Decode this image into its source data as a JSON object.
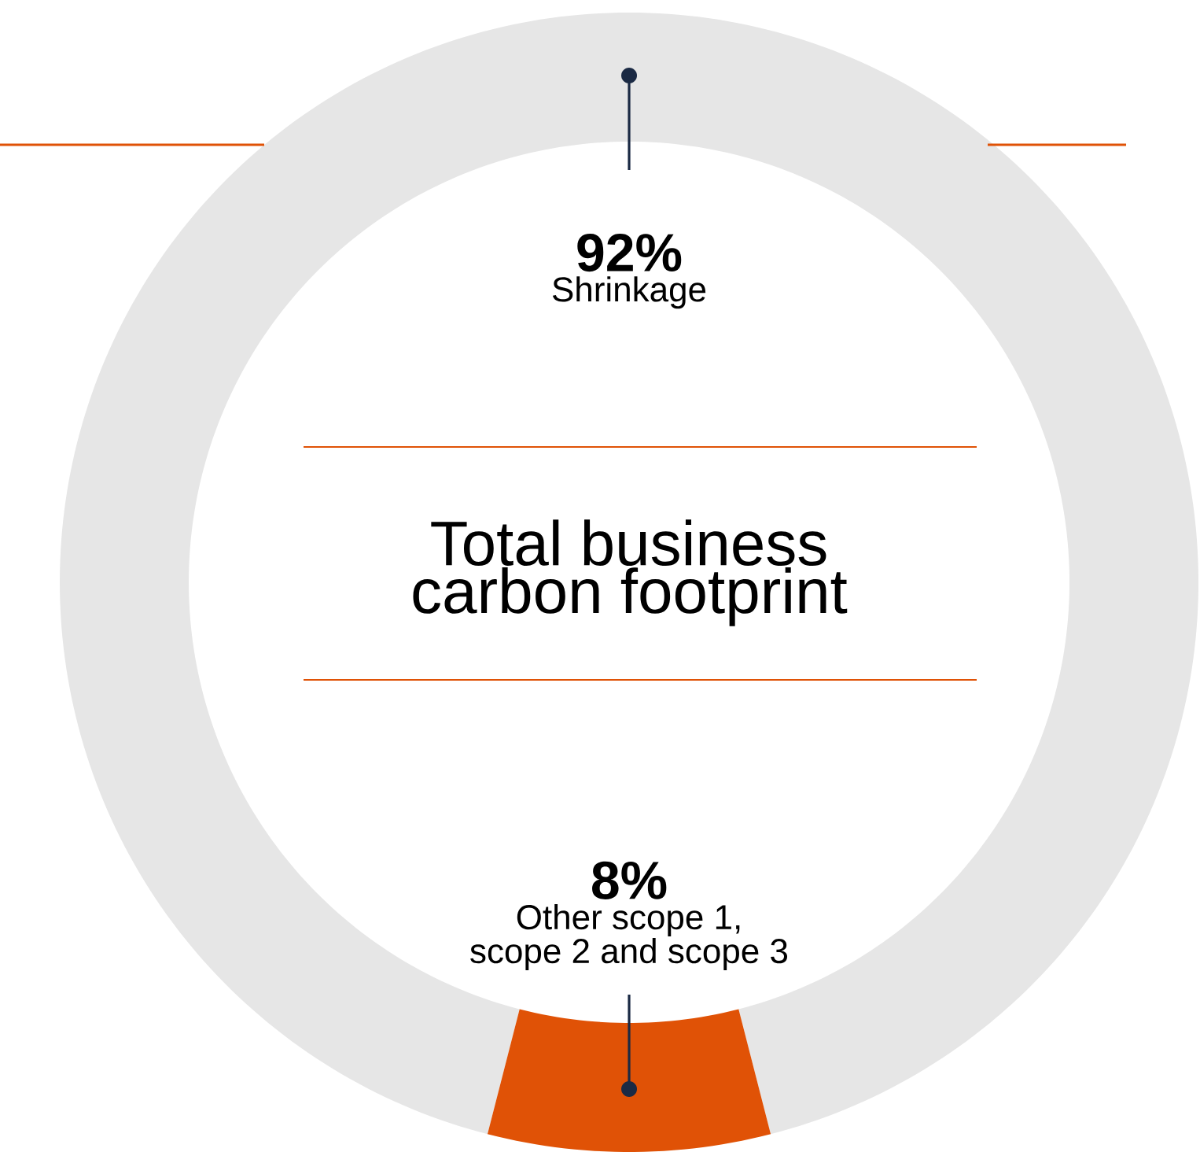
{
  "chart_data": {
    "type": "donut",
    "title": "Total business carbon footprint",
    "categories": [
      "Shrinkage",
      "Other scope 1, scope 2 and scope 3"
    ],
    "values": [
      92,
      8
    ],
    "value_labels": [
      "92%",
      "8%"
    ],
    "colors": [
      "#e6e6e6",
      "#e05206"
    ]
  }
}
